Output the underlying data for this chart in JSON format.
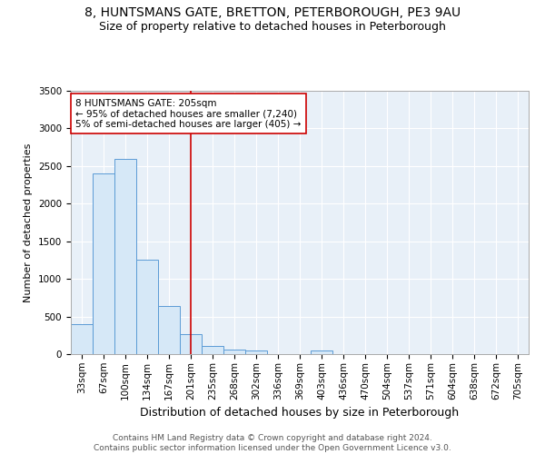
{
  "title1": "8, HUNTSMANS GATE, BRETTON, PETERBOROUGH, PE3 9AU",
  "title2": "Size of property relative to detached houses in Peterborough",
  "xlabel": "Distribution of detached houses by size in Peterborough",
  "ylabel": "Number of detached properties",
  "footer": "Contains HM Land Registry data © Crown copyright and database right 2024.\nContains public sector information licensed under the Open Government Licence v3.0.",
  "bin_labels": [
    "33sqm",
    "67sqm",
    "100sqm",
    "134sqm",
    "167sqm",
    "201sqm",
    "235sqm",
    "268sqm",
    "302sqm",
    "336sqm",
    "369sqm",
    "403sqm",
    "436sqm",
    "470sqm",
    "504sqm",
    "537sqm",
    "571sqm",
    "604sqm",
    "638sqm",
    "672sqm",
    "705sqm"
  ],
  "bar_values": [
    400,
    2400,
    2600,
    1250,
    640,
    260,
    110,
    60,
    50,
    0,
    0,
    45,
    0,
    0,
    0,
    0,
    0,
    0,
    0,
    0,
    0
  ],
  "bar_color": "#d6e8f7",
  "bar_edgecolor": "#5b9bd5",
  "red_line_index": 5,
  "annotation_text": "8 HUNTSMANS GATE: 205sqm\n← 95% of detached houses are smaller (7,240)\n5% of semi-detached houses are larger (405) →",
  "annotation_box_color": "#ffffff",
  "annotation_box_edgecolor": "#cc0000",
  "red_line_color": "#cc0000",
  "ylim": [
    0,
    3500
  ],
  "yticks": [
    0,
    500,
    1000,
    1500,
    2000,
    2500,
    3000,
    3500
  ],
  "bg_color": "#e8f0f8",
  "title1_fontsize": 10,
  "title2_fontsize": 9,
  "xlabel_fontsize": 9,
  "ylabel_fontsize": 8,
  "tick_fontsize": 7.5,
  "footer_fontsize": 6.5
}
